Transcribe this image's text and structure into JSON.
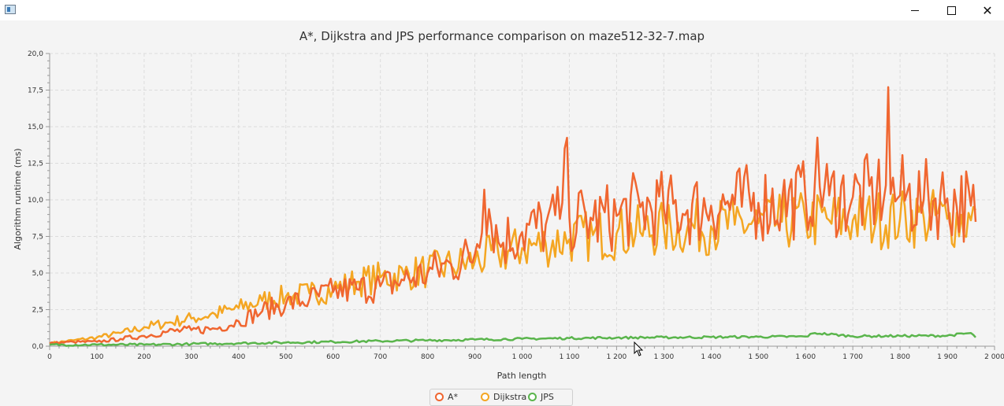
{
  "window": {
    "minimize_icon": "minimize-icon",
    "maximize_icon": "maximize-icon",
    "close_icon": "close-icon",
    "close_glyph": "✕"
  },
  "chart_data": {
    "type": "line",
    "title": "A*, Dijkstra and JPS performance comparison on maze512-32-7.map",
    "xlabel": "Path length",
    "ylabel": "Algorithm runtime (ms)",
    "xlim": [
      0,
      2000
    ],
    "ylim": [
      0,
      20
    ],
    "xticks": [
      0,
      100,
      200,
      300,
      400,
      500,
      600,
      700,
      800,
      900,
      1000,
      1100,
      1200,
      1300,
      1400,
      1500,
      1600,
      1700,
      1800,
      1900,
      2000
    ],
    "xtick_labels": [
      "0",
      "100",
      "200",
      "300",
      "400",
      "500",
      "600",
      "700",
      "800",
      "900",
      "1 000",
      "1 100",
      "1 200",
      "1 300",
      "1 400",
      "1 500",
      "1 600",
      "1 700",
      "1 800",
      "1 900",
      "2 000"
    ],
    "yticks": [
      0,
      2.5,
      5,
      7.5,
      10,
      12.5,
      15,
      17.5,
      20
    ],
    "ytick_labels": [
      "0,0",
      "2,5",
      "5,0",
      "7,5",
      "10,0",
      "12,5",
      "15,0",
      "17,5",
      "20,0"
    ],
    "grid": true,
    "legend_position": "bottom",
    "series": [
      {
        "name": "A*",
        "color": "#f06630",
        "x": [
          0,
          50,
          100,
          150,
          200,
          250,
          300,
          350,
          400,
          450,
          500,
          550,
          600,
          650,
          700,
          750,
          800,
          850,
          900,
          920,
          950,
          1000,
          1050,
          1080,
          1090,
          1100,
          1150,
          1200,
          1250,
          1300,
          1350,
          1400,
          1450,
          1500,
          1550,
          1600,
          1620,
          1650,
          1700,
          1750,
          1770,
          1775,
          1780,
          1800,
          1850,
          1900,
          1950,
          1960
        ],
        "y": [
          0.2,
          0.3,
          0.3,
          0.5,
          0.7,
          1.0,
          1.1,
          1.2,
          1.7,
          2.4,
          2.9,
          3.2,
          3.7,
          3.9,
          4.1,
          4.5,
          5.0,
          5.6,
          6.3,
          10.7,
          7.1,
          7.8,
          8.3,
          8.7,
          13.5,
          8.8,
          8.6,
          8.9,
          9.5,
          9.4,
          9.3,
          9.6,
          9.7,
          9.8,
          9.9,
          10.1,
          11.4,
          10.3,
          10.2,
          10.3,
          11.0,
          17.7,
          10.4,
          10.3,
          10.0,
          10.1,
          9.6,
          8.5
        ]
      },
      {
        "name": "Dijkstra",
        "color": "#f4a622",
        "x": [
          0,
          50,
          100,
          150,
          200,
          250,
          300,
          350,
          400,
          450,
          500,
          550,
          600,
          650,
          700,
          750,
          800,
          850,
          900,
          950,
          1000,
          1050,
          1100,
          1150,
          1200,
          1250,
          1300,
          1350,
          1400,
          1450,
          1500,
          1550,
          1600,
          1650,
          1700,
          1750,
          1800,
          1850,
          1900,
          1950,
          1960
        ],
        "y": [
          0.2,
          0.4,
          0.6,
          0.9,
          1.3,
          1.6,
          1.9,
          2.2,
          2.6,
          3.1,
          3.4,
          3.6,
          3.9,
          4.4,
          4.7,
          4.9,
          5.2,
          5.5,
          5.8,
          6.3,
          6.7,
          7.0,
          7.3,
          7.6,
          7.7,
          7.8,
          8.0,
          8.1,
          8.2,
          8.3,
          8.4,
          8.5,
          8.6,
          8.6,
          8.6,
          8.7,
          8.7,
          8.8,
          8.7,
          8.6,
          9.3
        ]
      },
      {
        "name": "JPS",
        "color": "#5ab54c",
        "x": [
          0,
          100,
          200,
          300,
          400,
          500,
          600,
          700,
          800,
          900,
          1000,
          1100,
          1200,
          1300,
          1400,
          1500,
          1600,
          1620,
          1700,
          1800,
          1900,
          1950,
          1960
        ],
        "y": [
          0.1,
          0.1,
          0.1,
          0.15,
          0.2,
          0.25,
          0.3,
          0.35,
          0.4,
          0.45,
          0.5,
          0.55,
          0.58,
          0.6,
          0.62,
          0.64,
          0.66,
          0.9,
          0.68,
          0.7,
          0.72,
          0.9,
          0.6
        ]
      }
    ]
  }
}
